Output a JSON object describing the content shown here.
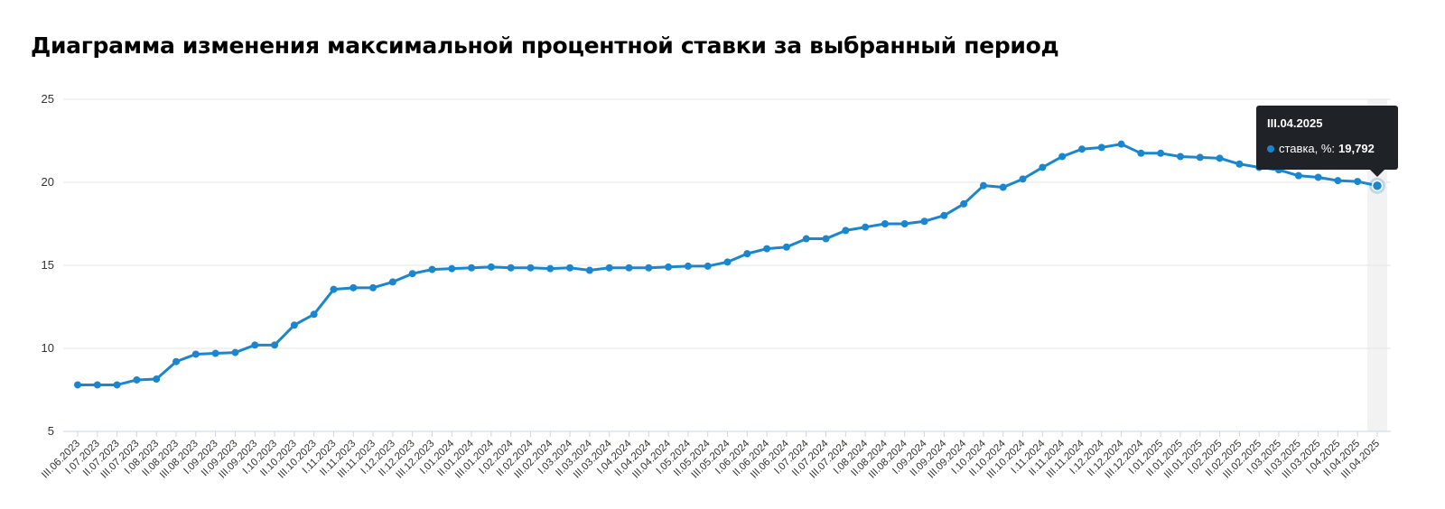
{
  "title": "Диаграмма изменения максимальной процентной ставки за выбранный период",
  "colors": {
    "line": "#1a86d0",
    "grid": "#e6e6e6",
    "axis": "#ccd6eb",
    "tooltip_bg": "#1f2227",
    "hover_band": "#f2f2f2"
  },
  "chart_data": {
    "type": "line",
    "title": "Диаграмма изменения максимальной процентной ставки за выбранный период",
    "xlabel": "",
    "ylabel": "",
    "ylim": [
      5,
      25
    ],
    "yticks": [
      5,
      10,
      15,
      20,
      25
    ],
    "grid": true,
    "categories": [
      "III.06.2023",
      "I.07.2023",
      "II.07.2023",
      "III.07.2023",
      "I.08.2023",
      "II.08.2023",
      "III.08.2023",
      "I.09.2023",
      "II.09.2023",
      "III.09.2023",
      "I.10.2023",
      "II.10.2023",
      "III.10.2023",
      "I.11.2023",
      "II.11.2023",
      "III.11.2023",
      "I.12.2023",
      "II.12.2023",
      "III.12.2023",
      "I.01.2024",
      "II.01.2024",
      "III.01.2024",
      "I.02.2024",
      "II.02.2024",
      "III.02.2024",
      "I.03.2024",
      "II.03.2024",
      "III.03.2024",
      "I.04.2024",
      "II.04.2024",
      "III.04.2024",
      "I.05.2024",
      "II.05.2024",
      "III.05.2024",
      "I.06.2024",
      "II.06.2024",
      "III.06.2024",
      "I.07.2024",
      "II.07.2024",
      "III.07.2024",
      "I.08.2024",
      "II.08.2024",
      "III.08.2024",
      "I.09.2024",
      "II.09.2024",
      "III.09.2024",
      "I.10.2024",
      "II.10.2024",
      "III.10.2024",
      "I.11.2024",
      "II.11.2024",
      "III.11.2024",
      "I.12.2024",
      "II.12.2024",
      "III.12.2024",
      "I.01.2025",
      "II.01.2025",
      "III.01.2025",
      "I.02.2025",
      "II.02.2025",
      "III.02.2025",
      "I.03.2025",
      "II.03.2025",
      "III.03.2025",
      "I.04.2025",
      "II.04.2025",
      "III.04.2025"
    ],
    "series": [
      {
        "name": "ставка, %",
        "values": [
          7.8,
          7.8,
          7.8,
          8.1,
          8.15,
          9.2,
          9.65,
          9.7,
          9.75,
          10.2,
          10.2,
          11.4,
          12.05,
          13.55,
          13.65,
          13.65,
          14.0,
          14.5,
          14.75,
          14.8,
          14.85,
          14.9,
          14.85,
          14.85,
          14.8,
          14.85,
          14.7,
          14.85,
          14.85,
          14.85,
          14.9,
          14.95,
          14.95,
          15.2,
          15.7,
          16.0,
          16.1,
          16.6,
          16.6,
          17.1,
          17.3,
          17.5,
          17.5,
          17.65,
          18.0,
          18.7,
          19.8,
          19.7,
          20.2,
          20.9,
          21.55,
          22.0,
          22.1,
          22.3,
          21.75,
          21.75,
          21.55,
          21.5,
          21.45,
          21.1,
          20.9,
          20.75,
          20.4,
          20.3,
          20.1,
          20.05,
          19.792
        ]
      }
    ],
    "tooltip": {
      "category": "III.04.2025",
      "label": "ставка, %:",
      "value": "19,792",
      "index": 66
    }
  }
}
